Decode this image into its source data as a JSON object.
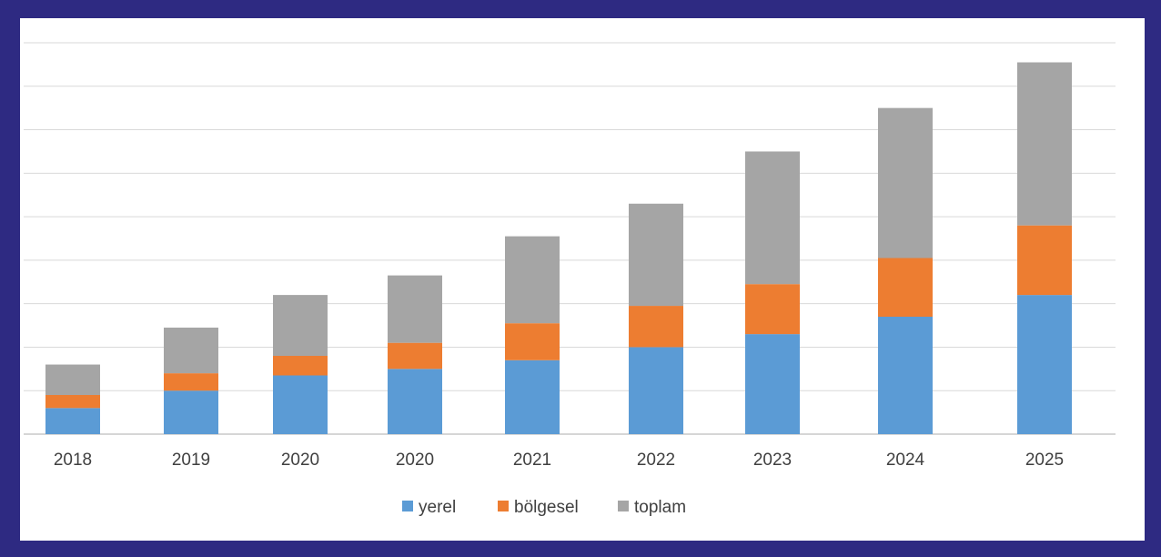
{
  "chart_data": {
    "type": "bar",
    "stacked": true,
    "categories": [
      "2018",
      "2019",
      "2020",
      "2020",
      "2021",
      "2022",
      "2023",
      "2024",
      "2025"
    ],
    "series": [
      {
        "name": "yerel",
        "color": "#5b9bd5",
        "values": [
          0.6,
          1.0,
          1.35,
          1.5,
          1.7,
          2.0,
          2.3,
          2.7,
          3.2
        ]
      },
      {
        "name": "bölgesel",
        "color": "#ed7d31",
        "values": [
          0.3,
          0.4,
          0.45,
          0.6,
          0.85,
          0.95,
          1.15,
          1.35,
          1.6
        ]
      },
      {
        "name": "toplam",
        "color": "#a5a5a5",
        "values": [
          0.7,
          1.05,
          1.4,
          1.55,
          2.0,
          2.35,
          3.05,
          3.45,
          3.75
        ]
      }
    ],
    "ylim": [
      0,
      9
    ],
    "gridlines": true,
    "gridline_count": 9,
    "legend_position": "bottom",
    "title": "",
    "xlabel": "",
    "ylabel": ""
  }
}
